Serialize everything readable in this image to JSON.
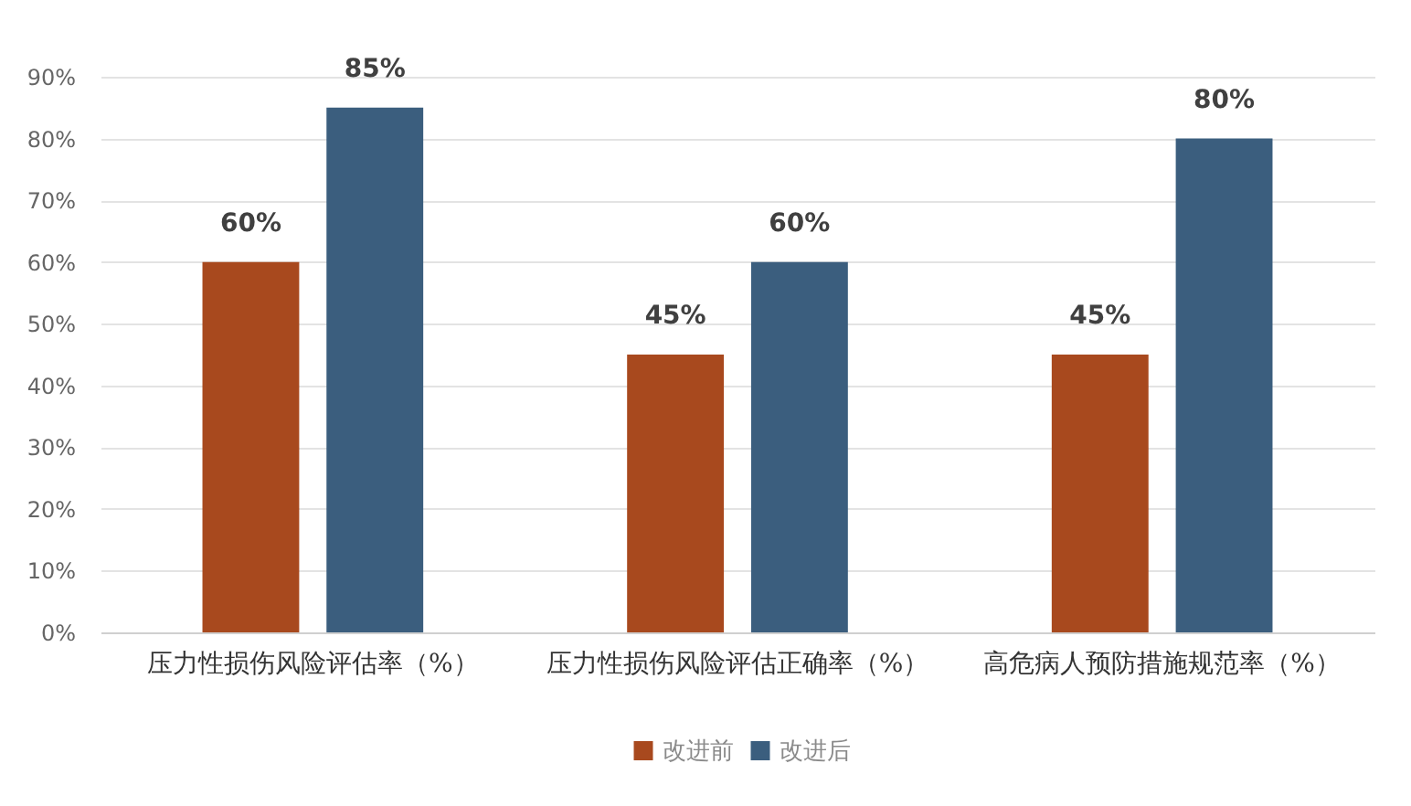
{
  "chart_data": {
    "type": "bar",
    "categories": [
      "压力性损伤风险评估率（%）",
      "压力性损伤风险评估正确率（%）",
      "高危病人预防措施规范率（%）"
    ],
    "series": [
      {
        "name": "改进前",
        "color": "#a8491e",
        "values": [
          60,
          45,
          45
        ],
        "value_labels": [
          "60%",
          "45%",
          "45%"
        ]
      },
      {
        "name": "改进后",
        "color": "#3b5e7e",
        "values": [
          85,
          60,
          80
        ],
        "value_labels": [
          "85%",
          "60%",
          "80%"
        ]
      }
    ],
    "ylim": [
      0,
      90
    ],
    "yticks": [
      {
        "value": 0,
        "label": "0%"
      },
      {
        "value": 10,
        "label": "10%"
      },
      {
        "value": 20,
        "label": "20%"
      },
      {
        "value": 30,
        "label": "30%"
      },
      {
        "value": 40,
        "label": "40%"
      },
      {
        "value": 50,
        "label": "50%"
      },
      {
        "value": 60,
        "label": "60%"
      },
      {
        "value": 70,
        "label": "70%"
      },
      {
        "value": 80,
        "label": "80%"
      },
      {
        "value": 90,
        "label": "90%"
      }
    ],
    "grid": "y",
    "legend": "bottom"
  }
}
